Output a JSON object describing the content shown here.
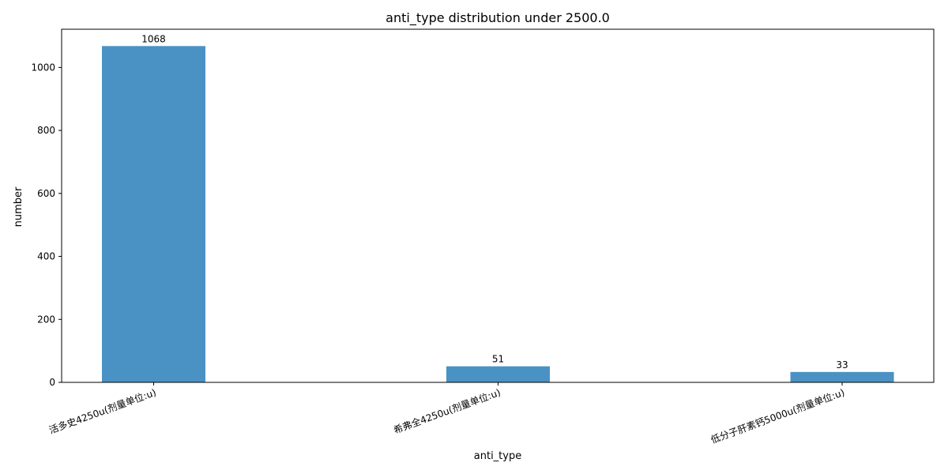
{
  "chart_data": {
    "type": "bar",
    "title": "anti_type distribution under 2500.0",
    "xlabel": "anti_type",
    "ylabel": "number",
    "categories": [
      "活多史4250u(剂量单位:u)",
      "希弗全4250u(剂量单位:u)",
      "低分子肝素钙5000u(剂量单位:u)"
    ],
    "values": [
      1068,
      51,
      33
    ],
    "ylim": [
      0,
      1121.4
    ],
    "yticks": [
      0,
      200,
      400,
      600,
      800,
      1000
    ],
    "bar_color": "#4a92c4",
    "grid": false,
    "legend": "none"
  }
}
